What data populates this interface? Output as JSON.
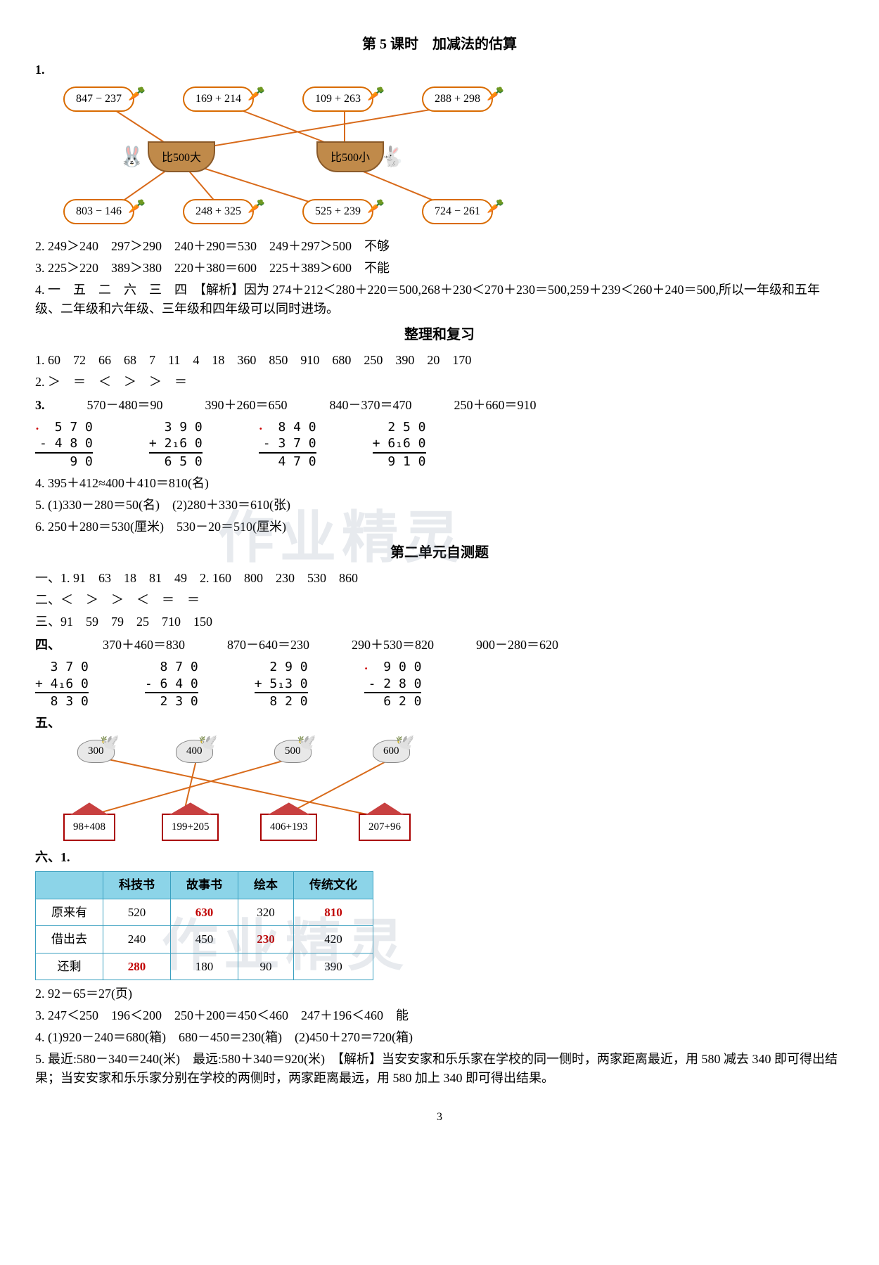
{
  "lesson5": {
    "title": "第 5 课时　加减法的估算",
    "q1_label": "1.",
    "carrots_top": [
      "847 − 237",
      "169 + 214",
      "109 + 263",
      "288 + 298"
    ],
    "baskets": [
      "比500大",
      "比500小"
    ],
    "carrots_bottom": [
      "803 − 146",
      "248 + 325",
      "525 + 239",
      "724 − 261"
    ],
    "q2": "2. 249＞240　297＞290　240＋290＝530　249＋297＞500　不够",
    "q3": "3. 225＞220　389＞380　220＋380＝600　225＋389＞600　不能",
    "q4": "4. 一　五　二　六　三　四　【解析】因为 274＋212＜280＋220＝500,268＋230＜270＋230＝500,259＋239＜260＋240＝500,所以一年级和五年级、二年级和六年级、三年级和四年级可以同时进场。"
  },
  "review": {
    "title": "整理和复习",
    "q1": "1. 60　72　66　68　7　11　4　18　360　850　910　680　250　390　20　170",
    "q2": "2. ＞　＝　＜　＞　＞　＝",
    "q3_eqs": [
      "570－480＝90",
      "390＋260＝650",
      "840－370＝470",
      "250＋660＝910"
    ],
    "q3_label": "3.",
    "calcs": [
      {
        "l1": "  5 7 0",
        "l2": "- 4 8 0",
        "l3": "    9 0",
        "dot": true
      },
      {
        "l1": "  3 9 0",
        "l2": "+ 2₁6 0",
        "l3": "  6 5 0"
      },
      {
        "l1": "  8 4 0",
        "l2": "- 3 7 0",
        "l3": "  4 7 0",
        "dot": true
      },
      {
        "l1": "  2 5 0",
        "l2": "+ 6₁6 0",
        "l3": "  9 1 0"
      }
    ],
    "q4": "4. 395＋412≈400＋410＝810(名)",
    "q5": "5. (1)330－280＝50(名)　(2)280＋330＝610(张)",
    "q6": "6. 250＋280＝530(厘米)　530－20＝510(厘米)"
  },
  "unit2": {
    "title": "第二单元自测题",
    "p1": "一、1. 91　63　18　81　49　2. 160　800　230　530　860",
    "p2": "二、＜　＞　＞　＜　＝　＝",
    "p3": "三、91　59　79　25　710　150",
    "p4_label": "四、",
    "p4_eqs": [
      "370＋460＝830",
      "870－640＝230",
      "290＋530＝820",
      "900－280＝620"
    ],
    "calcs4": [
      {
        "l1": "  3 7 0",
        "l2": "+ 4₁6 0",
        "l3": "  8 3 0"
      },
      {
        "l1": "  8 7 0",
        "l2": "- 6 4 0",
        "l3": "  2 3 0"
      },
      {
        "l1": "  2 9 0",
        "l2": "+ 5₁3 0",
        "l3": "  8 2 0"
      },
      {
        "l1": "  9 0 0",
        "l2": "- 2 8 0",
        "l3": "  6 2 0",
        "dot": true
      }
    ],
    "p5_label": "五、",
    "birds": [
      "300",
      "400",
      "500",
      "600"
    ],
    "houses": [
      "98+408",
      "199+205",
      "406+193",
      "207+96"
    ],
    "p6_label": "六、1.",
    "table": {
      "headers": [
        "",
        "科技书",
        "故事书",
        "绘本",
        "传统文化"
      ],
      "rows": [
        {
          "label": "原来有",
          "cells": [
            {
              "v": "520"
            },
            {
              "v": "630",
              "red": true
            },
            {
              "v": "320"
            },
            {
              "v": "810",
              "red": true
            }
          ]
        },
        {
          "label": "借出去",
          "cells": [
            {
              "v": "240"
            },
            {
              "v": "450"
            },
            {
              "v": "230",
              "red": true
            },
            {
              "v": "420"
            }
          ]
        },
        {
          "label": "还剩",
          "cells": [
            {
              "v": "280",
              "red": true
            },
            {
              "v": "180"
            },
            {
              "v": "90"
            },
            {
              "v": "390"
            }
          ]
        }
      ]
    },
    "p6_2": "2. 92－65＝27(页)",
    "p6_3": "3. 247＜250　196＜200　250＋200＝450＜460　247＋196＜460　能",
    "p6_4": "4. (1)920－240＝680(箱)　680－450＝230(箱)　(2)450＋270＝720(箱)",
    "p6_5": "5. 最近:580－340＝240(米)　最远:580＋340＝920(米)　【解析】当安安家和乐乐家在学校的同一侧时，两家距离最近，用 580 减去 340 即可得出结果；当安安家和乐乐家分别在学校的两侧时，两家距离最远，用 580 加上 340 即可得出结果。"
  },
  "watermark_text": "作业精灵",
  "page_number": "3",
  "colors": {
    "line": "#d86a1a",
    "red": "#c00000",
    "table_border": "#3aa0c0",
    "table_header": "#8cd4e8"
  }
}
